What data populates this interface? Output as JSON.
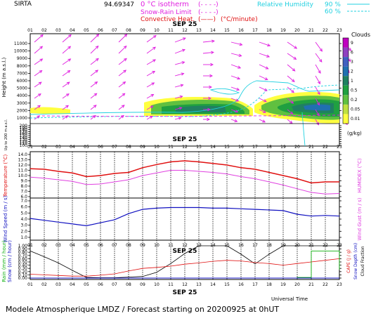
{
  "header": {
    "station": "SIRTA",
    "coords": "94.69347",
    "legend_left": [
      {
        "label": "0 °C isotherm",
        "style": "(- - - -)",
        "color": "#e020e0"
      },
      {
        "label": "Snow-Rain Limit",
        "style": "(- - - -)",
        "color": "#e020e0"
      },
      {
        "label": "Convective Heat.",
        "style": "(——)",
        "unit": "(°C/minute)",
        "color": "#e01010"
      }
    ],
    "legend_right": {
      "label": "Relative Humidity",
      "levels": [
        "90 %",
        "60 %"
      ],
      "color": "#20d0e0"
    }
  },
  "footer": {
    "model_text": "Modele Atmospherique LMDZ / Forecast starting on 20200925 at 0hUT",
    "xaxis_label": "Universal Time",
    "date_label": "SEP 25"
  },
  "hours": [
    "01",
    "02",
    "03",
    "04",
    "05",
    "06",
    "07",
    "08",
    "09",
    "10",
    "11",
    "12",
    "13",
    "14",
    "15",
    "16",
    "17",
    "18",
    "19",
    "20",
    "21",
    "22",
    "23"
  ],
  "chart_data": [
    {
      "type": "heatmap",
      "name": "clouds-wind-profile",
      "title": "SEP 25",
      "ylabel": "Height (m a.s.l.)",
      "ylabel_low": "Up to 200 m a.s.l.",
      "yticks_high": [
        "11000",
        "10000",
        "9000",
        "8000",
        "7000",
        "6000",
        "5000",
        "4000",
        "3000",
        "2000",
        "1000"
      ],
      "yticks_low": [
        "200",
        "190",
        "180",
        "170",
        "160",
        "150",
        "140",
        "130",
        "120",
        "110",
        "100"
      ],
      "colorbar": {
        "title": "Clouds",
        "unit": "(g/kg)",
        "levels": [
          "9",
          "6",
          "3",
          "2",
          "1",
          "0.5",
          "0.2",
          "0.05",
          "0.01"
        ],
        "colors": [
          "#c000c0",
          "#9040c0",
          "#4060c0",
          "#2070b0",
          "#208060",
          "#20a040",
          "#60c040",
          "#c0e040",
          "#ffff40"
        ]
      },
      "wind_directions_deg_from_east": [
        35,
        35,
        35,
        38,
        38,
        38,
        38,
        35,
        30,
        20,
        15,
        10,
        0,
        -10,
        -20,
        -25,
        -25,
        -30,
        -40,
        -50,
        -60,
        -55,
        -55
      ]
    },
    {
      "type": "line",
      "name": "temperature-humidex",
      "ylabel_left": "Temperature (°C)",
      "ylabel_right": "HUMIDEX (°C)",
      "yticks": [
        "14.0",
        "13.0",
        "12.0",
        "11.0",
        "10.0",
        "9.0",
        "8.0",
        "7.0",
        "6.0"
      ],
      "ylim": [
        6,
        14
      ],
      "series": [
        {
          "name": "Temperature",
          "color": "#e01010",
          "values": [
            11.3,
            11.2,
            10.8,
            10.5,
            9.8,
            10.0,
            10.4,
            10.6,
            11.5,
            12.1,
            12.6,
            12.8,
            12.6,
            12.3,
            12.0,
            11.5,
            11.2,
            10.6,
            10.0,
            9.4,
            8.6,
            8.8,
            8.8
          ]
        },
        {
          "name": "HUMIDEX",
          "color": "#e040e0",
          "values": [
            9.7,
            9.5,
            9.2,
            8.9,
            8.3,
            8.4,
            8.8,
            9.2,
            10.0,
            10.5,
            11.0,
            11.0,
            10.8,
            10.6,
            10.3,
            9.8,
            9.4,
            8.8,
            8.2,
            7.5,
            6.8,
            6.5,
            6.6
          ]
        }
      ]
    },
    {
      "type": "line",
      "name": "wind-speed-gust",
      "ylabel_left": "Wind Speed (m / s)",
      "ylabel_right": "Wind Gust (m / s)",
      "yticks": [
        "7.0",
        "6.0",
        "5.0",
        "4.0",
        "3.0",
        "2.0",
        "1.0"
      ],
      "ylim": [
        0.5,
        7.5
      ],
      "series": [
        {
          "name": "Wind Speed",
          "color": "#1010c0",
          "values": [
            4.1,
            3.8,
            3.5,
            3.2,
            2.9,
            3.4,
            3.9,
            4.9,
            5.6,
            5.8,
            5.9,
            5.9,
            5.9,
            5.8,
            5.8,
            5.7,
            5.6,
            5.5,
            5.4,
            4.8,
            4.5,
            4.6,
            4.5
          ]
        }
      ]
    },
    {
      "type": "line",
      "name": "precip-cape-cloud",
      "title": "SEP 25",
      "ylabel_left_1": "Rain (mm / hour)",
      "ylabel_left_2": "Snow (cm / hour)",
      "ylabel_right_1": "CAPE (J / g)",
      "ylabel_right_2": "Snow Depth (cm)",
      "ylabel_right_3": "Cloud Fraction",
      "yticks": [
        "1.00",
        "0.90",
        "0.80",
        "0.70",
        "0.60",
        "0.50",
        "0.40",
        "0.30",
        "0.20",
        "0.10",
        "0.00"
      ],
      "ylim": [
        0,
        1
      ],
      "series": [
        {
          "name": "Cloud Fraction",
          "color": "#000000",
          "values": [
            0.84,
            0.66,
            0.47,
            0.24,
            0.02,
            0.01,
            0.01,
            0.03,
            0.05,
            0.18,
            0.45,
            0.76,
            1.0,
            1.0,
            1.0,
            0.74,
            0.44,
            0.74,
            1.0,
            1.0,
            1.0,
            1.0,
            1.0
          ]
        },
        {
          "name": "CAPE",
          "color": "#e01010",
          "values": [
            0.12,
            0.1,
            0.08,
            0.06,
            0.06,
            0.09,
            0.13,
            0.22,
            0.3,
            0.33,
            0.37,
            0.43,
            0.47,
            0.52,
            0.55,
            0.53,
            0.48,
            0.45,
            0.4,
            0.45,
            0.5,
            0.55,
            0.6
          ]
        },
        {
          "name": "Rain",
          "color": "#10b010",
          "values": [
            0,
            0,
            0,
            0,
            0,
            0,
            0,
            0,
            0,
            0,
            0,
            0,
            0,
            0,
            0,
            0,
            0,
            0,
            0,
            0.02,
            0.84,
            0.84,
            0.26
          ]
        },
        {
          "name": "Snow",
          "color": "#1010c0",
          "values": [
            0,
            0,
            0,
            0,
            0,
            0,
            0,
            0,
            0,
            0,
            0,
            0,
            0,
            0,
            0,
            0,
            0,
            0,
            0,
            0,
            0,
            0,
            0
          ]
        }
      ]
    }
  ]
}
